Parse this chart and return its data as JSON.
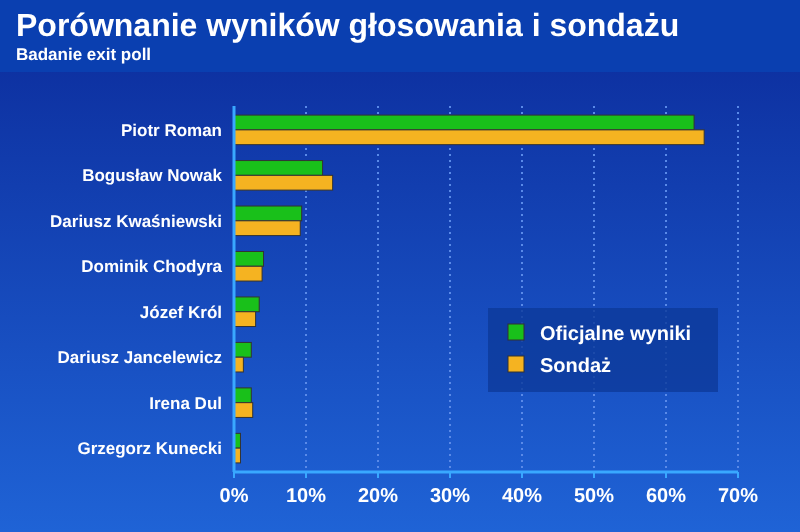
{
  "chart_data": {
    "type": "bar",
    "orientation": "horizontal",
    "title": "Porównanie wyników głosowania i sondażu",
    "subtitle": "Badanie exit poll",
    "categories": [
      "Piotr Roman",
      "Bogusław Nowak",
      "Dariusz Kwaśniewski",
      "Dominik Chodyra",
      "Józef Król",
      "Dariusz Jancelewicz",
      "Irena Dul",
      "Grzegorz Kunecki"
    ],
    "series": [
      {
        "name": "Oficjalne wyniki",
        "color": "#19c01a",
        "values": [
          63.9,
          12.3,
          9.4,
          4.1,
          3.5,
          2.4,
          2.4,
          0.9
        ]
      },
      {
        "name": "Sondaż",
        "color": "#f5b321",
        "values": [
          65.3,
          13.7,
          9.2,
          3.9,
          3.0,
          1.3,
          2.6,
          0.9
        ]
      }
    ],
    "xlim": [
      0,
      70
    ],
    "xticks": [
      {
        "value": 0,
        "label": "0%"
      },
      {
        "value": 10,
        "label": "10%"
      },
      {
        "value": 20,
        "label": "20%"
      },
      {
        "value": 30,
        "label": "30%"
      },
      {
        "value": 40,
        "label": "40%"
      },
      {
        "value": 50,
        "label": "50%"
      },
      {
        "value": 60,
        "label": "60%"
      },
      {
        "value": 70,
        "label": "70%"
      }
    ],
    "grid": "x",
    "legend": "bottom right"
  }
}
